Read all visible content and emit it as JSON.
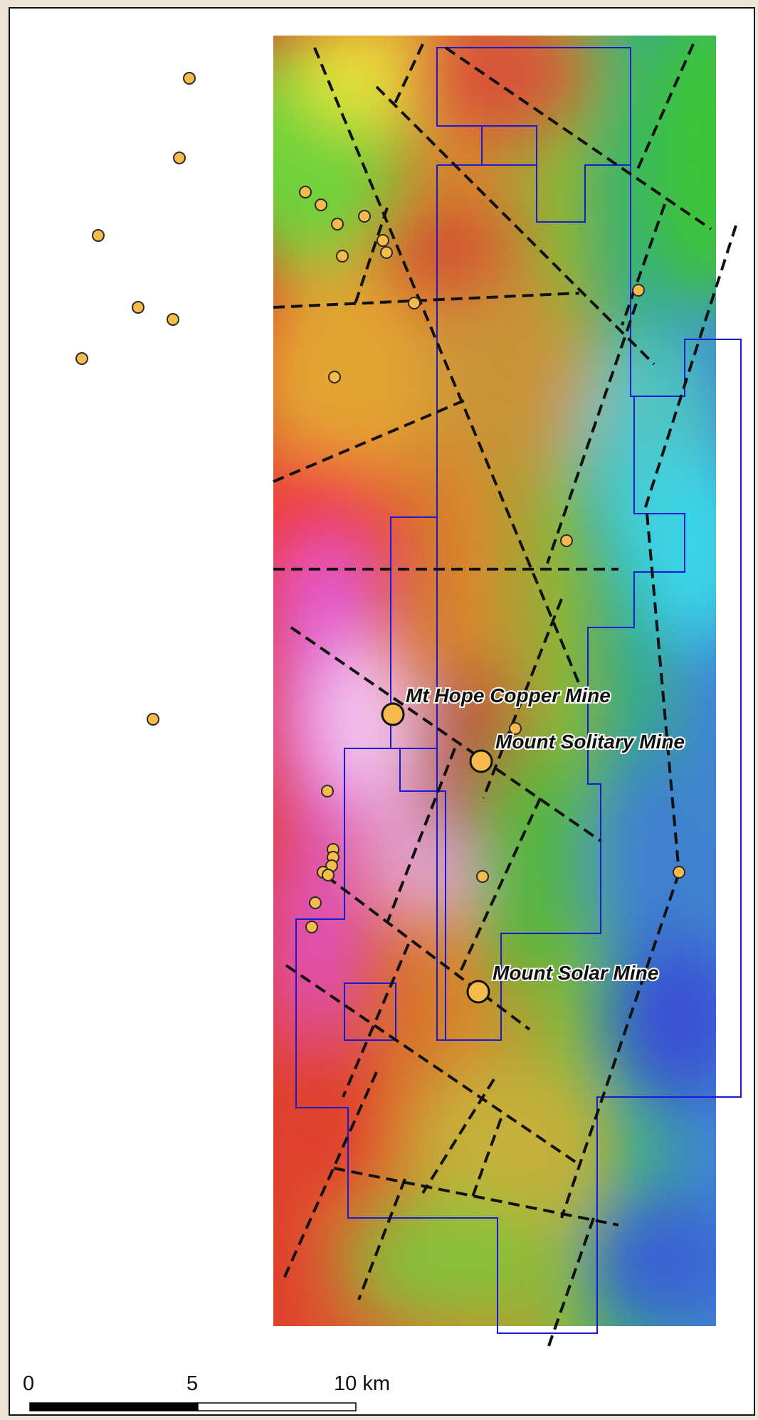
{
  "mines": [
    {
      "name": "Mt Hope Copper Mine"
    },
    {
      "name": "Mount Solitary Mine"
    },
    {
      "name": "Mount Solar Mine"
    }
  ],
  "scale_bar": {
    "ticks": [
      "0",
      "5",
      "10 km"
    ],
    "unit": "km",
    "max_value": 10
  },
  "colors": {
    "background_frame": "#ede4d6",
    "tenement_outline": "#1a1ad6",
    "fault_lines": "#111111",
    "occurrence_fill": "#f6bb4a",
    "occurrence_stroke": "#2a2a2a"
  },
  "legend_semantics": {
    "point_symbols": "mineral occurrences (small) and mines (large)",
    "dashed_lines": "faults",
    "blue_outlines": "tenement boundaries",
    "raster": "geophysical colour image"
  }
}
